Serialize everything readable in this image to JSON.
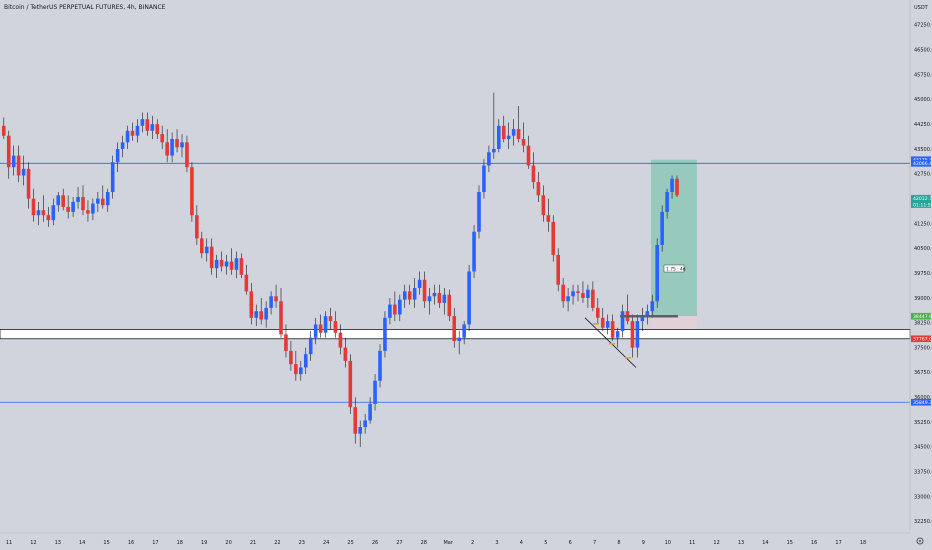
{
  "title": "Bitcoin / TetherUS PERPETUAL FUTURES, 4h, BINANCE",
  "currency": "USDT",
  "colors": {
    "background": "#d1d4dc",
    "bull": "#2962ff",
    "bear": "#e53935",
    "hline": "#2962ff",
    "zone_fill": "#ffffff",
    "zone_border": "#131722",
    "profit_fill": "#8dc7b7",
    "loss_fill": "#e6cfd6",
    "trendline": "#131722",
    "marker": "#f59c1a"
  },
  "price_axis": {
    "ticks": [
      "47250.0",
      "46500.0",
      "45750.0",
      "45000.0",
      "44250.0",
      "43500.0",
      "42750.0",
      "42000.0",
      "41250.0",
      "40500.0",
      "39750.0",
      "39000.0",
      "38250.0",
      "37500.0",
      "36750.0",
      "36000.0",
      "35250.0",
      "34500.0",
      "33750.0",
      "33000.0",
      "32250.0"
    ],
    "badges": [
      {
        "text": "43175.3",
        "color": "#2962ff"
      },
      {
        "text": "43066.4",
        "color": "#2962ff"
      },
      {
        "text": "42012.7",
        "color": "#26a69a"
      },
      {
        "text": "01:11:59",
        "color": "#26a69a"
      },
      {
        "text": "38447.9",
        "color": "#4caf50"
      },
      {
        "text": "37767.0",
        "color": "#e53935"
      },
      {
        "text": "35849.3",
        "color": "#2962ff"
      }
    ]
  },
  "time_axis": {
    "ticks": [
      "11",
      "12",
      "13",
      "14",
      "15",
      "16",
      "17",
      "18",
      "19",
      "20",
      "21",
      "22",
      "23",
      "24",
      "25",
      "26",
      "27",
      "28",
      "Mar",
      "2",
      "3",
      "4",
      "5",
      "6",
      "7",
      "8",
      "9",
      "10",
      "11",
      "12",
      "13",
      "14",
      "15",
      "16",
      "17",
      "18"
    ]
  },
  "position_label": "1.75 · 4d",
  "icon": "gear-icon",
  "chart_data": {
    "type": "candlestick",
    "symbol": "Bitcoin / TetherUS PERPETUAL FUTURES",
    "interval": "4h",
    "exchange": "BINANCE",
    "ylim": [
      31900,
      48000
    ],
    "horizontal_lines": [
      43066.4,
      35849.3
    ],
    "support_zone": [
      37767.0,
      38050.0
    ],
    "long_position": {
      "entry": 38447.9,
      "target": 43175.3,
      "stop": 37767.0
    },
    "trendline": {
      "from": [
        [
          "2022-03-05",
          38500
        ]
      ],
      "to": [
        [
          "2022-03-08",
          36900
        ]
      ]
    },
    "candles": [
      [
        44200,
        44450,
        43800,
        43900
      ],
      [
        43900,
        44050,
        42600,
        42950
      ],
      [
        42950,
        43600,
        42700,
        43300
      ],
      [
        43300,
        43600,
        42500,
        42700
      ],
      [
        42700,
        43300,
        42400,
        42900
      ],
      [
        42900,
        43100,
        41700,
        42000
      ],
      [
        42000,
        42300,
        41300,
        41500
      ],
      [
        41500,
        41900,
        41200,
        41650
      ],
      [
        41650,
        42100,
        41300,
        41500
      ],
      [
        41500,
        41750,
        41150,
        41350
      ],
      [
        41350,
        42000,
        41200,
        41800
      ],
      [
        41800,
        42200,
        41600,
        42100
      ],
      [
        42100,
        42300,
        41650,
        41750
      ],
      [
        41750,
        42100,
        41400,
        41600
      ],
      [
        41600,
        42050,
        41450,
        41900
      ],
      [
        41900,
        42350,
        41700,
        42050
      ],
      [
        42050,
        42400,
        41500,
        41650
      ],
      [
        41650,
        41950,
        41300,
        41550
      ],
      [
        41550,
        42000,
        41350,
        41850
      ],
      [
        41850,
        42200,
        41600,
        42000
      ],
      [
        42000,
        42400,
        41700,
        41800
      ],
      [
        41800,
        42300,
        41600,
        42200
      ],
      [
        42200,
        43300,
        42000,
        43100
      ],
      [
        43100,
        43700,
        42800,
        43500
      ],
      [
        43500,
        43900,
        43250,
        43700
      ],
      [
        43700,
        44200,
        43500,
        44050
      ],
      [
        44050,
        44300,
        43750,
        43900
      ],
      [
        43900,
        44400,
        43700,
        44200
      ],
      [
        44200,
        44600,
        44000,
        44400
      ],
      [
        44400,
        44600,
        43900,
        44050
      ],
      [
        44050,
        44500,
        43800,
        44250
      ],
      [
        44250,
        44400,
        43800,
        43950
      ],
      [
        43950,
        44200,
        43500,
        43700
      ],
      [
        43700,
        44100,
        43100,
        43300
      ],
      [
        43300,
        44000,
        43100,
        43800
      ],
      [
        43800,
        44100,
        43400,
        43550
      ],
      [
        43550,
        43950,
        43250,
        43700
      ],
      [
        43700,
        43900,
        42800,
        42950
      ],
      [
        42950,
        43100,
        41300,
        41500
      ],
      [
        41500,
        41800,
        40600,
        40800
      ],
      [
        40800,
        41000,
        40200,
        40350
      ],
      [
        40350,
        40800,
        40100,
        40550
      ],
      [
        40550,
        40800,
        39700,
        39900
      ],
      [
        39900,
        40300,
        39600,
        40150
      ],
      [
        40150,
        40400,
        39800,
        39950
      ],
      [
        39950,
        40300,
        39700,
        40100
      ],
      [
        40100,
        40500,
        39700,
        39850
      ],
      [
        39850,
        40400,
        39600,
        40200
      ],
      [
        40200,
        40350,
        39600,
        39700
      ],
      [
        39700,
        40000,
        39100,
        39200
      ],
      [
        39200,
        39450,
        38200,
        38400
      ],
      [
        38400,
        38800,
        38150,
        38600
      ],
      [
        38600,
        39000,
        38200,
        38350
      ],
      [
        38350,
        38900,
        38100,
        38700
      ],
      [
        38700,
        39200,
        38500,
        39050
      ],
      [
        39050,
        39400,
        38700,
        38900
      ],
      [
        38900,
        39300,
        37800,
        37900
      ],
      [
        37900,
        38200,
        37200,
        37400
      ],
      [
        37400,
        37700,
        36800,
        37000
      ],
      [
        37000,
        37400,
        36500,
        36700
      ],
      [
        36700,
        37100,
        36500,
        36900
      ],
      [
        36900,
        37500,
        36700,
        37300
      ],
      [
        37300,
        38000,
        37100,
        37800
      ],
      [
        37800,
        38400,
        37600,
        38200
      ],
      [
        38200,
        38500,
        37800,
        37950
      ],
      [
        37950,
        38600,
        37800,
        38450
      ],
      [
        38450,
        38700,
        38050,
        38300
      ],
      [
        38300,
        38600,
        37800,
        37950
      ],
      [
        37950,
        38200,
        37300,
        37500
      ],
      [
        37500,
        37800,
        36900,
        37100
      ],
      [
        37100,
        37300,
        35500,
        35700
      ],
      [
        35700,
        36000,
        34600,
        34900
      ],
      [
        34900,
        35300,
        34500,
        35100
      ],
      [
        35100,
        35500,
        34900,
        35300
      ],
      [
        35300,
        36000,
        35200,
        35800
      ],
      [
        35800,
        36700,
        35600,
        36500
      ],
      [
        36500,
        37600,
        36300,
        37400
      ],
      [
        37400,
        38600,
        37200,
        38400
      ],
      [
        38400,
        39000,
        38200,
        38800
      ],
      [
        38800,
        39200,
        38300,
        38500
      ],
      [
        38500,
        39100,
        38300,
        38950
      ],
      [
        38950,
        39400,
        38700,
        39200
      ],
      [
        39200,
        39400,
        38800,
        38950
      ],
      [
        38950,
        39600,
        38700,
        39300
      ],
      [
        39300,
        39800,
        39100,
        39550
      ],
      [
        39550,
        39800,
        38700,
        38900
      ],
      [
        38900,
        39300,
        38500,
        39050
      ],
      [
        39050,
        39400,
        38800,
        39150
      ],
      [
        39150,
        39400,
        38700,
        38850
      ],
      [
        38850,
        39300,
        38500,
        39100
      ],
      [
        39100,
        39250,
        38300,
        38450
      ],
      [
        38450,
        38700,
        37500,
        37700
      ],
      [
        37700,
        38000,
        37300,
        37800
      ],
      [
        37800,
        38300,
        37600,
        38200
      ],
      [
        38200,
        40000,
        38000,
        39800
      ],
      [
        39800,
        41200,
        39600,
        41000
      ],
      [
        41000,
        42400,
        40800,
        42200
      ],
      [
        42200,
        43200,
        42000,
        43000
      ],
      [
        43000,
        43600,
        42800,
        43400
      ],
      [
        43400,
        45200,
        43200,
        43500
      ],
      [
        43500,
        44400,
        43400,
        44200
      ],
      [
        44200,
        44500,
        43700,
        43800
      ],
      [
        43800,
        44300,
        43500,
        43900
      ],
      [
        43900,
        44400,
        43600,
        44100
      ],
      [
        44100,
        44800,
        43700,
        43800
      ],
      [
        43800,
        44300,
        43400,
        43600
      ],
      [
        43600,
        43900,
        42900,
        43000
      ],
      [
        43000,
        43400,
        42300,
        42500
      ],
      [
        42500,
        42800,
        41900,
        42100
      ],
      [
        42100,
        42400,
        41300,
        41500
      ],
      [
        41500,
        42000,
        41000,
        41300
      ],
      [
        41300,
        41500,
        40100,
        40300
      ],
      [
        40300,
        40500,
        39200,
        39400
      ],
      [
        39400,
        39600,
        38700,
        38900
      ],
      [
        38900,
        39300,
        38600,
        39050
      ],
      [
        39050,
        39400,
        38800,
        39200
      ],
      [
        39200,
        39400,
        38900,
        39150
      ],
      [
        39150,
        39500,
        38850,
        39000
      ],
      [
        39000,
        39400,
        38700,
        39250
      ],
      [
        39250,
        39500,
        38600,
        38700
      ],
      [
        38700,
        39000,
        38200,
        38400
      ],
      [
        38400,
        38700,
        38000,
        38100
      ],
      [
        38100,
        38500,
        37900,
        38300
      ],
      [
        38300,
        38500,
        37700,
        37800
      ],
      [
        37800,
        38100,
        37500,
        38000
      ],
      [
        38000,
        38800,
        37800,
        38600
      ],
      [
        38600,
        39100,
        38200,
        38300
      ],
      [
        38300,
        38500,
        37200,
        37500
      ],
      [
        37500,
        38500,
        37200,
        38300
      ],
      [
        38300,
        38700,
        38000,
        38450
      ],
      [
        38450,
        38800,
        38200,
        38600
      ],
      [
        38600,
        39100,
        38400,
        38900
      ],
      [
        38900,
        40800,
        38700,
        40600
      ],
      [
        40600,
        41800,
        40400,
        41600
      ],
      [
        41600,
        42300,
        41400,
        42200
      ],
      [
        42200,
        42700,
        42000,
        42600
      ],
      [
        42600,
        42700,
        42050,
        42100
      ]
    ]
  }
}
